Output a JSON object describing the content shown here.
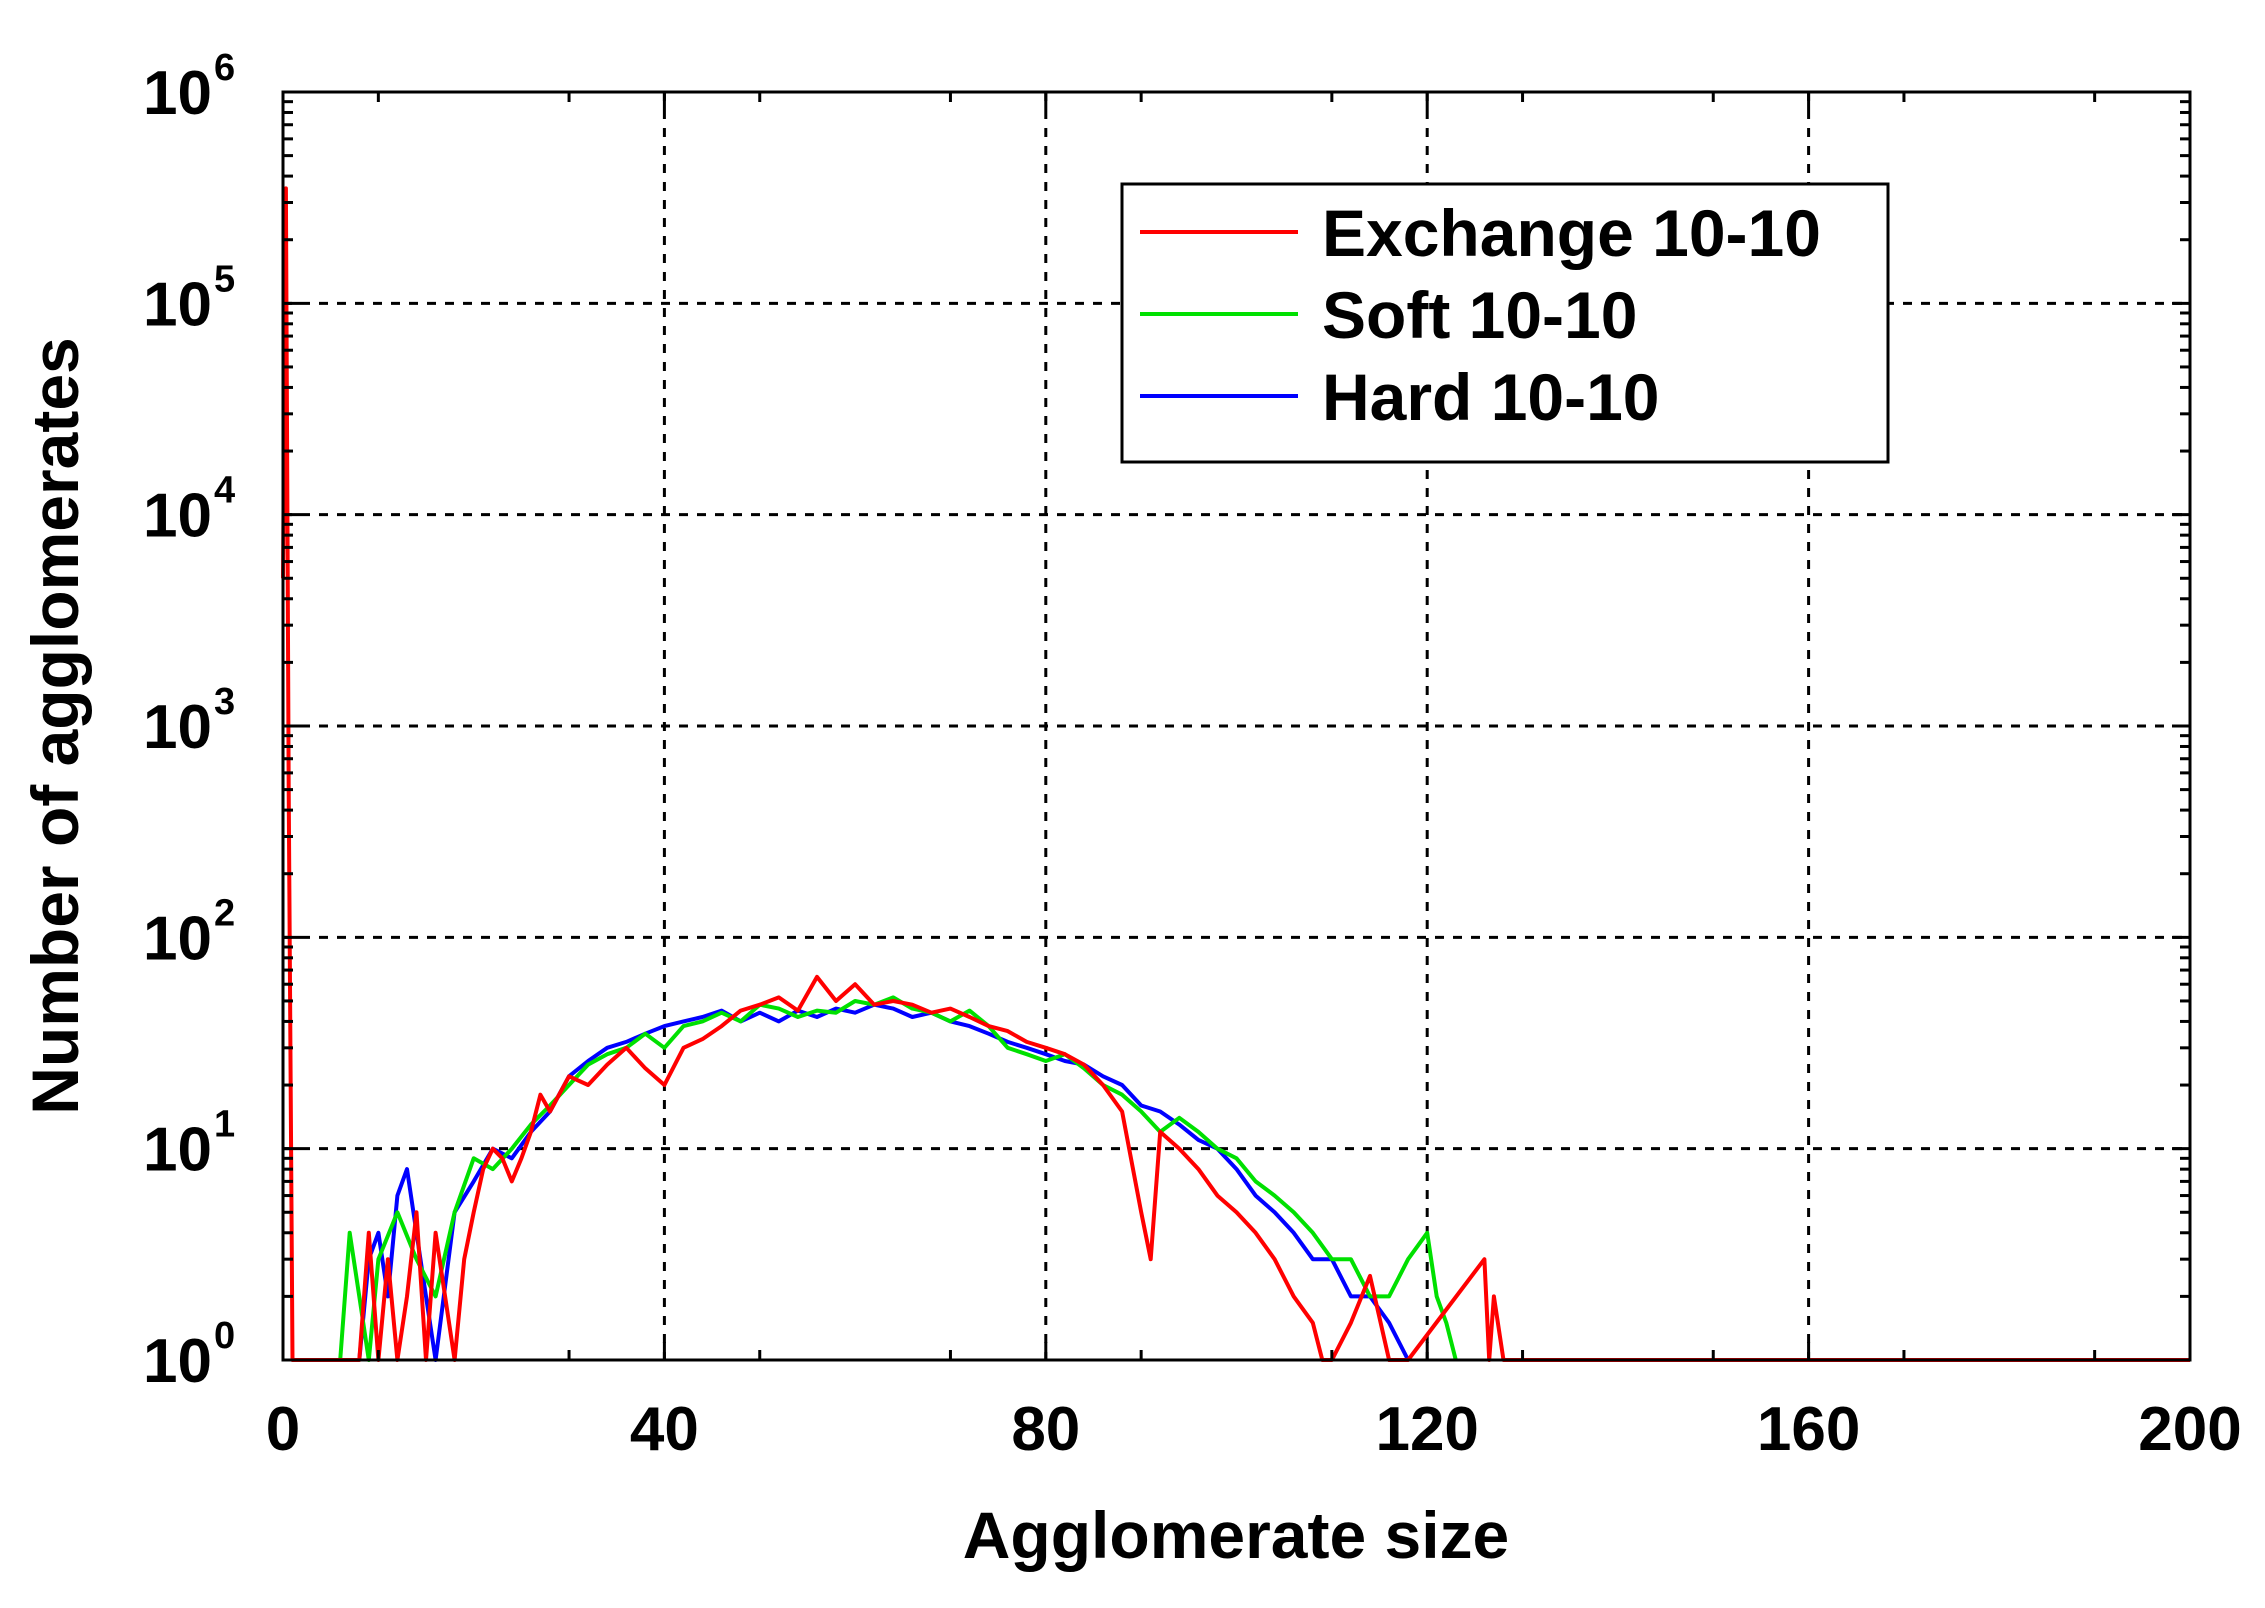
{
  "chart_data": {
    "type": "line",
    "title": "",
    "xlabel": "Agglomerate size",
    "ylabel": "Number of agglomerates",
    "xlim": [
      0,
      200
    ],
    "ylim": [
      1,
      1000000
    ],
    "yscale": "log",
    "grid": true,
    "legend_position": "top-right",
    "x_ticks": [
      {
        "value": 0,
        "label": "0"
      },
      {
        "value": 40,
        "label": "40"
      },
      {
        "value": 80,
        "label": "80"
      },
      {
        "value": 120,
        "label": "120"
      },
      {
        "value": 160,
        "label": "160"
      },
      {
        "value": 200,
        "label": "200"
      }
    ],
    "y_ticks": [
      {
        "value": 1,
        "base": "10",
        "exp": "0"
      },
      {
        "value": 10,
        "base": "10",
        "exp": "1"
      },
      {
        "value": 100,
        "base": "10",
        "exp": "2"
      },
      {
        "value": 1000,
        "base": "10",
        "exp": "3"
      },
      {
        "value": 10000,
        "base": "10",
        "exp": "4"
      },
      {
        "value": 100000,
        "base": "10",
        "exp": "5"
      },
      {
        "value": 1000000,
        "base": "10",
        "exp": "6"
      }
    ],
    "series": [
      {
        "name": "Exchange 10-10",
        "color": "#ff0000",
        "x": [
          0,
          0.3,
          0.6,
          1,
          8,
          9,
          10,
          11,
          12,
          13,
          14,
          15,
          16,
          17,
          18,
          19,
          20,
          21,
          22,
          23,
          24,
          25,
          26,
          27,
          28,
          30,
          32,
          34,
          36,
          38,
          40,
          42,
          44,
          46,
          48,
          50,
          52,
          54,
          56,
          58,
          60,
          62,
          64,
          66,
          68,
          70,
          72,
          74,
          76,
          78,
          80,
          82,
          84,
          86,
          88,
          90,
          91,
          92,
          94,
          96,
          98,
          100,
          102,
          104,
          106,
          108,
          109,
          110,
          112,
          114,
          116,
          117,
          118,
          126,
          126.5,
          127,
          128,
          200
        ],
        "y": [
          5000,
          350000,
          500,
          1,
          1,
          4,
          1,
          3,
          1,
          2,
          5,
          1,
          4,
          2,
          1,
          3,
          5,
          8,
          10,
          9,
          7,
          9,
          12,
          18,
          15,
          22,
          20,
          25,
          30,
          24,
          20,
          30,
          33,
          38,
          45,
          48,
          52,
          45,
          65,
          50,
          60,
          48,
          50,
          48,
          44,
          46,
          42,
          38,
          36,
          32,
          30,
          28,
          25,
          20,
          15,
          5,
          3,
          12,
          10,
          8,
          6,
          5,
          4,
          3,
          2,
          1.5,
          1,
          1,
          1.5,
          2.5,
          1,
          1,
          1,
          3,
          1,
          2,
          1,
          1
        ]
      },
      {
        "name": "Soft 10-10",
        "color": "#00e000",
        "x": [
          6,
          7,
          8,
          9,
          10,
          12,
          14,
          16,
          18,
          20,
          22,
          24,
          26,
          28,
          30,
          32,
          34,
          36,
          38,
          40,
          42,
          44,
          46,
          48,
          50,
          52,
          54,
          56,
          58,
          60,
          62,
          64,
          66,
          68,
          70,
          72,
          74,
          76,
          78,
          80,
          82,
          84,
          86,
          88,
          90,
          92,
          94,
          96,
          98,
          100,
          102,
          104,
          106,
          108,
          110,
          112,
          114,
          116,
          118,
          120,
          121,
          122,
          123
        ],
        "y": [
          1,
          4,
          2,
          1,
          3,
          5,
          3,
          2,
          5,
          9,
          8,
          10,
          13,
          16,
          20,
          25,
          28,
          30,
          35,
          30,
          38,
          40,
          44,
          40,
          48,
          46,
          42,
          45,
          44,
          50,
          48,
          52,
          46,
          44,
          40,
          45,
          38,
          30,
          28,
          26,
          28,
          24,
          20,
          18,
          15,
          12,
          14,
          12,
          10,
          9,
          7,
          6,
          5,
          4,
          3,
          3,
          2,
          2,
          3,
          4,
          2,
          1.5,
          1
        ]
      },
      {
        "name": "Hard 10-10",
        "color": "#0000ff",
        "x": [
          8,
          9,
          10,
          11,
          12,
          13,
          14,
          15,
          16,
          18,
          20,
          22,
          24,
          26,
          28,
          30,
          32,
          34,
          36,
          38,
          40,
          42,
          44,
          46,
          48,
          50,
          52,
          54,
          56,
          58,
          60,
          62,
          64,
          66,
          68,
          70,
          72,
          74,
          76,
          78,
          80,
          82,
          84,
          86,
          88,
          90,
          92,
          94,
          96,
          98,
          100,
          102,
          104,
          106,
          108,
          110,
          112,
          114,
          116,
          118
        ],
        "y": [
          1,
          3,
          4,
          2,
          6,
          8,
          4,
          2,
          1,
          5,
          7,
          10,
          9,
          12,
          15,
          22,
          26,
          30,
          32,
          35,
          38,
          40,
          42,
          45,
          40,
          44,
          40,
          45,
          42,
          46,
          44,
          48,
          46,
          42,
          44,
          40,
          38,
          35,
          32,
          30,
          28,
          26,
          25,
          22,
          20,
          16,
          15,
          13,
          11,
          10,
          8,
          6,
          5,
          4,
          3,
          3,
          2,
          2,
          1.5,
          1
        ]
      }
    ]
  }
}
